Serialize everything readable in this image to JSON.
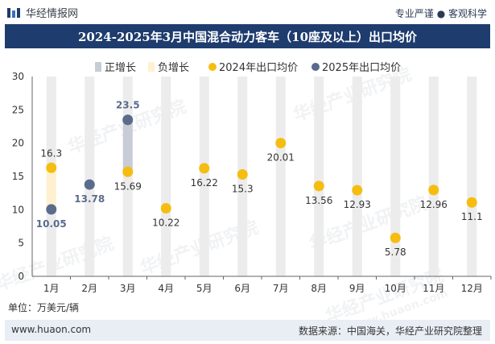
{
  "header": {
    "brand": "华经情报网",
    "tagline": "专业严谨 ● 客观科学"
  },
  "watermark": "华经产业研究院",
  "watermark_url": "www.huaon.com",
  "colors": {
    "title_bg": "#1e3c6e",
    "rise": "#c7ccd6",
    "fall": "#fff1d0",
    "series2024": "#f5bd0f",
    "series2025": "#5a6b8c",
    "band": "#ececec"
  },
  "chart_data": {
    "type": "scatter",
    "title": "2024-2025年3月中国混合动力客车（10座及以上）出口均价",
    "ylim": [
      0,
      30
    ],
    "yticks": [
      0,
      5,
      10,
      15,
      20,
      25,
      30
    ],
    "categories": [
      "1月",
      "2月",
      "3月",
      "4月",
      "5月",
      "6月",
      "7月",
      "8月",
      "9月",
      "10月",
      "11月",
      "12月"
    ],
    "legend": [
      "正增长",
      "负增长",
      "2024年出口均价",
      "2025年出口均价"
    ],
    "legend_position": "top",
    "series": [
      {
        "name": "2024年出口均价",
        "values": [
          16.3,
          null,
          15.69,
          10.22,
          16.22,
          15.3,
          20.01,
          13.56,
          12.93,
          5.78,
          12.96,
          11.1
        ]
      },
      {
        "name": "2025年出口均价",
        "values": [
          10.05,
          13.78,
          23.5,
          null,
          null,
          null,
          null,
          null,
          null,
          null,
          null,
          null
        ]
      }
    ],
    "labels_2024": [
      "16.3",
      "",
      "15.69",
      "10.22",
      "16.22",
      "15.3",
      "20.01",
      "13.56",
      "12.93",
      "5.78",
      "12.96",
      "11.1"
    ],
    "labels_2025": [
      "10.05",
      "13.78",
      "23.5",
      "",
      "",
      "",
      "",
      "",
      "",
      "",
      "",
      ""
    ],
    "change_bars": [
      {
        "category": "1月",
        "from": 10.05,
        "to": 16.3,
        "kind": "负增长"
      },
      {
        "category": "3月",
        "from": 15.69,
        "to": 23.5,
        "kind": "正增长"
      }
    ]
  },
  "footer": {
    "unit": "单位：万美元/辆",
    "site": "www.huaon.com",
    "source": "数据来源：中国海关，华经产业研究院整理"
  }
}
